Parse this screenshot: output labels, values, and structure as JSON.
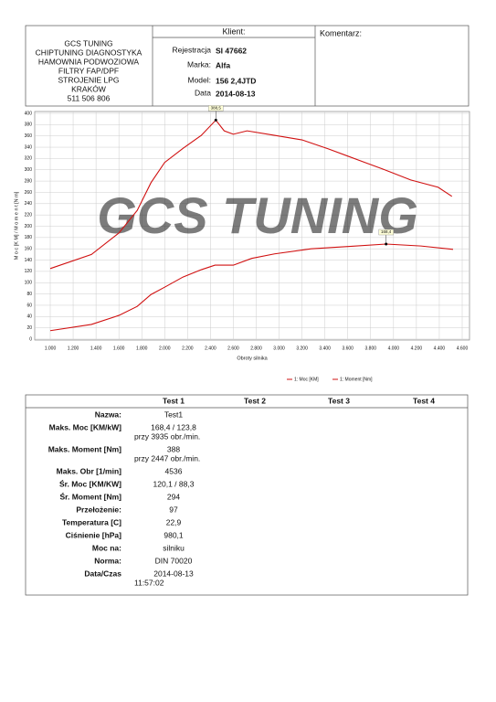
{
  "header": {
    "company_lines": [
      "GCS TUNING",
      "CHIPTUNING DIAGNOSTYKA",
      "HAMOWNIA PODWOZIOWA",
      "FILTRY FAP/DPF",
      "STROJENIE LPG",
      "KRAKÓW",
      "511 506 806"
    ],
    "client_title": "Klient:",
    "fields": [
      {
        "label": "Rejestracja",
        "value": "SI 47662"
      },
      {
        "label": "Marka:",
        "value": "Alfa"
      },
      {
        "label": "Model:",
        "value": "156 2,4JTD"
      },
      {
        "label": "Data",
        "value": "2014-08-13"
      }
    ],
    "comment_title": "Komentarz:"
  },
  "chart_data": {
    "type": "line",
    "x_label": "Obroty silnika",
    "y_label": "M o c  [K M]  /  M o m e n t  [N m]",
    "watermark": "GCS TUNING",
    "annotations": [
      "388,5",
      "168,4"
    ],
    "xlim": [
      1000,
      4600
    ],
    "ylim": [
      0,
      400
    ],
    "xticks": [
      {
        "value": 1000,
        "label": "1.000"
      },
      {
        "value": 1200,
        "label": "1.200"
      },
      {
        "value": 1400,
        "label": "1.400"
      },
      {
        "value": 1600,
        "label": "1.600"
      },
      {
        "value": 1800,
        "label": "1.800"
      },
      {
        "value": 2000,
        "label": "2.000"
      },
      {
        "value": 2200,
        "label": "2.200"
      },
      {
        "value": 2400,
        "label": "2.400"
      },
      {
        "value": 2600,
        "label": "2.600"
      },
      {
        "value": 2800,
        "label": "2.800"
      },
      {
        "value": 3000,
        "label": "3.000"
      },
      {
        "value": 3200,
        "label": "3.200"
      },
      {
        "value": 3400,
        "label": "3.400"
      },
      {
        "value": 3600,
        "label": "3.600"
      },
      {
        "value": 3800,
        "label": "3.800"
      },
      {
        "value": 4000,
        "label": "4.000"
      },
      {
        "value": 4200,
        "label": "4.200"
      },
      {
        "value": 4400,
        "label": "4.400"
      },
      {
        "value": 4600,
        "label": "4.600"
      }
    ],
    "yticks": [
      0,
      20,
      40,
      60,
      80,
      100,
      120,
      140,
      160,
      180,
      200,
      220,
      240,
      260,
      280,
      300,
      320,
      340,
      360,
      380,
      400
    ],
    "grid": true,
    "series": [
      {
        "name": "1: Moc [KM]",
        "color": "#d01010",
        "x": [
          1000,
          1360,
          1600,
          1760,
          1880,
          2000,
          2160,
          2320,
          2440,
          2600,
          2760,
          2960,
          3280,
          3600,
          3935,
          4240,
          4520
        ],
        "values": [
          15,
          26,
          42,
          58,
          79,
          92,
          110,
          123,
          131,
          131,
          143,
          151,
          160,
          164,
          168.4,
          165,
          159
        ]
      },
      {
        "name": "1: Moment [Nm]",
        "color": "#d01010",
        "x": [
          1000,
          1360,
          1600,
          1760,
          1880,
          2000,
          2160,
          2320,
          2447,
          2520,
          2600,
          2720,
          2960,
          3200,
          3430,
          3750,
          3910,
          4150,
          4390,
          4510
        ],
        "values": [
          125,
          150,
          188,
          228,
          277,
          313,
          338,
          361,
          388,
          369,
          363,
          369,
          361,
          353,
          337,
          313,
          301,
          282,
          269,
          253
        ]
      }
    ]
  },
  "table": {
    "columns": [
      "Test 1",
      "Test 2",
      "Test 3",
      "Test 4"
    ],
    "rows": [
      {
        "label": "Nazwa:",
        "lines": [
          "Test1"
        ]
      },
      {
        "label": "Maks. Moc [KM/kW]",
        "lines": [
          "168,4 / 123,8",
          "przy 3935 obr./min."
        ]
      },
      {
        "label": "Maks. Moment [Nm]",
        "lines": [
          "388",
          "przy 2447 obr./min."
        ]
      },
      {
        "label": "Maks. Obr [1/min]",
        "lines": [
          "4536"
        ]
      },
      {
        "label": "Śr. Moc [KM/KW]",
        "lines": [
          "120,1 / 88,3"
        ]
      },
      {
        "label": "Śr. Moment [Nm]",
        "lines": [
          "294"
        ]
      },
      {
        "label": "Przełożenie:",
        "lines": [
          "97"
        ]
      },
      {
        "label": "Temperatura [C]",
        "lines": [
          "22,9"
        ]
      },
      {
        "label": "Ciśnienie [hPa]",
        "lines": [
          "980,1"
        ]
      },
      {
        "label": "Moc na:",
        "lines": [
          "silniku"
        ]
      },
      {
        "label": "Norma:",
        "lines": [
          "DIN 70020"
        ]
      },
      {
        "label": "Data/Czas",
        "lines": [
          "2014-08-13",
          "11:57:02"
        ]
      }
    ]
  }
}
